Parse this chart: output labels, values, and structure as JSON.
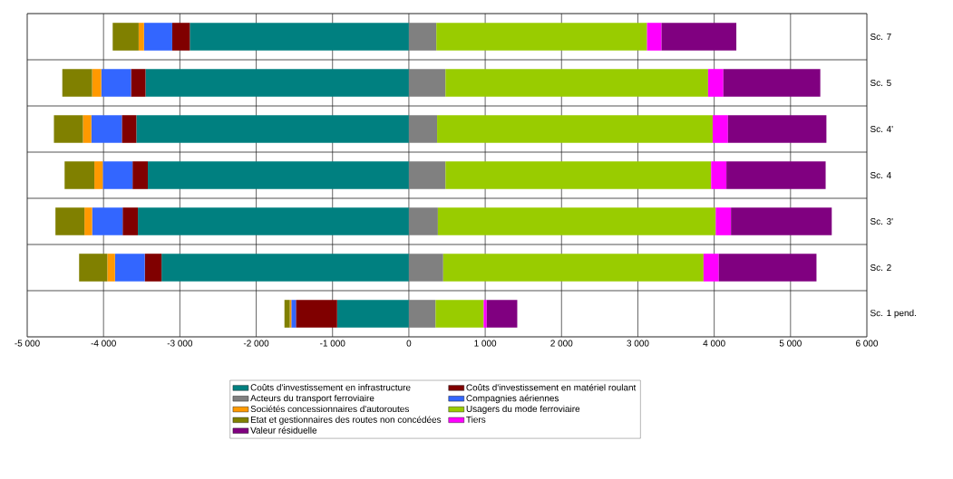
{
  "chart_data": {
    "type": "bar",
    "orientation": "horizontal",
    "stacked": true,
    "categories": [
      "Sc. 7",
      "Sc. 5",
      "Sc. 4'",
      "Sc. 4",
      "Sc. 3'",
      "Sc. 2",
      "Sc. 1 pend."
    ],
    "series": [
      {
        "name": "Coûts d'investissement en infrastructure",
        "color": "#008080",
        "values": [
          -2870,
          -3450,
          -3570,
          -3420,
          -3550,
          -3240,
          -940
        ]
      },
      {
        "name": "Coûts d'investissement en matériel roulant",
        "color": "#800000",
        "values": [
          -230,
          -190,
          -190,
          -200,
          -200,
          -220,
          -540
        ]
      },
      {
        "name": "Acteurs du transport ferroviaire",
        "color": "#808080",
        "values": [
          360,
          480,
          370,
          480,
          380,
          450,
          350
        ]
      },
      {
        "name": "Compagnies aériennes",
        "color": "#3366ff",
        "values": [
          -370,
          -390,
          -400,
          -390,
          -400,
          -390,
          -60
        ]
      },
      {
        "name": "Sociétés concessionnaires d'autoroutes",
        "color": "#ff9900",
        "values": [
          -70,
          -120,
          -110,
          -110,
          -100,
          -100,
          -20
        ]
      },
      {
        "name": "Usagers du mode ferroviaire",
        "color": "#99cc00",
        "values": [
          2760,
          3440,
          3610,
          3480,
          3640,
          3410,
          630
        ]
      },
      {
        "name": "Etat et gestionnaires des routes non concédées",
        "color": "#808000",
        "values": [
          -340,
          -390,
          -380,
          -390,
          -380,
          -370,
          -70
        ]
      },
      {
        "name": "Tiers",
        "color": "#ff00ff",
        "values": [
          190,
          200,
          200,
          200,
          200,
          200,
          40
        ]
      },
      {
        "name": "Valeur résiduelle",
        "color": "#800080",
        "values": [
          980,
          1270,
          1290,
          1300,
          1320,
          1280,
          400
        ]
      }
    ],
    "xlim": [
      -5000,
      6000
    ],
    "xticks": [
      {
        "value": -5000,
        "label": "-5 000"
      },
      {
        "value": -4000,
        "label": "-4 000"
      },
      {
        "value": -3000,
        "label": "-3 000"
      },
      {
        "value": -2000,
        "label": "-2 000"
      },
      {
        "value": -1000,
        "label": "-1 000"
      },
      0,
      {
        "value": 1000,
        "label": "1 000"
      },
      {
        "value": 2000,
        "label": "2 000"
      },
      {
        "value": 3000,
        "label": "3 000"
      },
      {
        "value": 4000,
        "label": "4 000"
      },
      {
        "value": 5000,
        "label": "5 000"
      },
      {
        "value": 6000,
        "label": "6 000"
      }
    ],
    "grid": true,
    "legend": "bottom"
  }
}
